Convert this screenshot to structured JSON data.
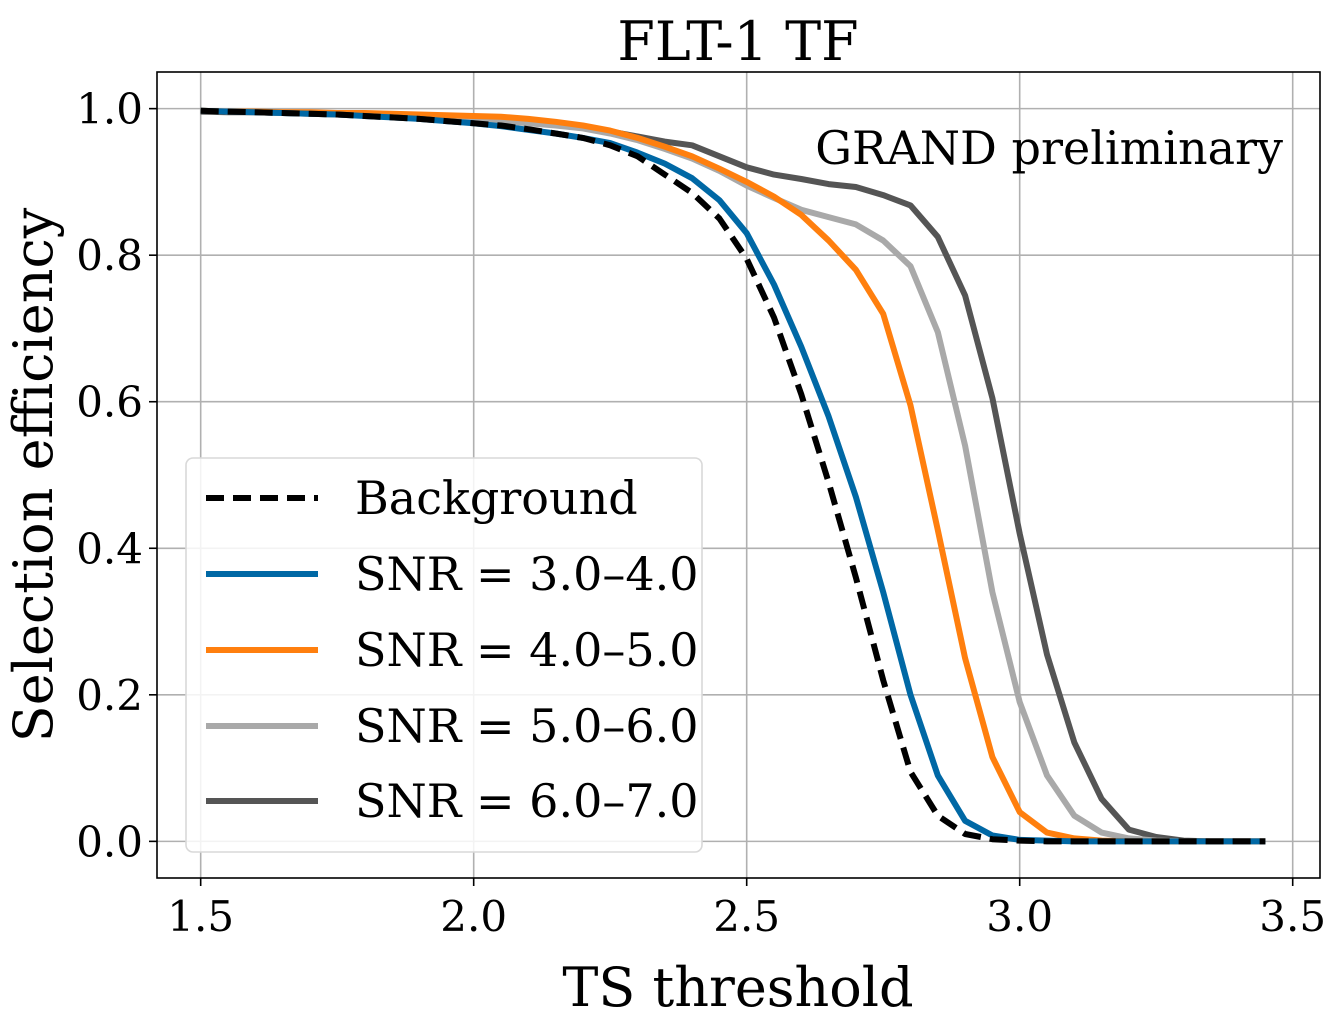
{
  "chart_data": {
    "type": "line",
    "title": "FLT-1 TF",
    "xlabel": "TS threshold",
    "ylabel": "Selection efficiency",
    "xlim": [
      1.42,
      3.55
    ],
    "ylim": [
      -0.05,
      1.05
    ],
    "xticks": [
      1.5,
      2.0,
      2.5,
      3.0,
      3.5
    ],
    "xtick_labels": [
      "1.5",
      "2.0",
      "2.5",
      "3.0",
      "3.5"
    ],
    "yticks": [
      0.0,
      0.2,
      0.4,
      0.6,
      0.8,
      1.0
    ],
    "ytick_labels": [
      "0.0",
      "0.2",
      "0.4",
      "0.6",
      "0.8",
      "1.0"
    ],
    "grid": true,
    "legend_position": "lower-left",
    "annotation": {
      "text": "GRAND preliminary",
      "color": "#d6174a",
      "position": "top-right"
    },
    "x": [
      1.5,
      1.55,
      1.6,
      1.65,
      1.7,
      1.75,
      1.8,
      1.85,
      1.9,
      1.95,
      2.0,
      2.05,
      2.1,
      2.15,
      2.2,
      2.25,
      2.3,
      2.35,
      2.4,
      2.45,
      2.5,
      2.55,
      2.6,
      2.65,
      2.7,
      2.75,
      2.8,
      2.85,
      2.9,
      2.95,
      3.0,
      3.05,
      3.1,
      3.15,
      3.2,
      3.25,
      3.3,
      3.35,
      3.4,
      3.45
    ],
    "series": [
      {
        "name": "Background",
        "color": "#000000",
        "dash": true,
        "values": [
          0.997,
          0.996,
          0.995,
          0.994,
          0.993,
          0.992,
          0.99,
          0.988,
          0.986,
          0.983,
          0.98,
          0.977,
          0.972,
          0.966,
          0.96,
          0.95,
          0.935,
          0.91,
          0.885,
          0.85,
          0.795,
          0.715,
          0.61,
          0.49,
          0.36,
          0.22,
          0.095,
          0.035,
          0.01,
          0.003,
          0.001,
          0.0,
          0.0,
          0.0,
          0.0,
          0.0,
          0.0,
          0.0,
          0.0,
          0.0
        ]
      },
      {
        "name": "SNR = 3.0–4.0",
        "color": "#0068a5",
        "dash": false,
        "values": [
          0.997,
          0.996,
          0.995,
          0.994,
          0.993,
          0.992,
          0.99,
          0.988,
          0.986,
          0.983,
          0.98,
          0.976,
          0.971,
          0.966,
          0.96,
          0.953,
          0.94,
          0.925,
          0.905,
          0.875,
          0.83,
          0.76,
          0.675,
          0.58,
          0.47,
          0.34,
          0.2,
          0.09,
          0.028,
          0.008,
          0.002,
          0.001,
          0.0,
          0.0,
          0.0,
          0.0,
          0.0,
          0.0,
          0.0,
          0.0
        ]
      },
      {
        "name": "SNR = 4.0–5.0",
        "color": "#ff7f0e",
        "dash": false,
        "values": [
          0.997,
          0.996,
          0.996,
          0.995,
          0.995,
          0.994,
          0.994,
          0.993,
          0.992,
          0.991,
          0.99,
          0.989,
          0.986,
          0.982,
          0.977,
          0.97,
          0.96,
          0.948,
          0.935,
          0.918,
          0.9,
          0.88,
          0.855,
          0.82,
          0.78,
          0.72,
          0.595,
          0.425,
          0.25,
          0.115,
          0.04,
          0.012,
          0.004,
          0.001,
          0.0,
          0.0,
          0.0,
          0.0,
          0.0,
          0.0
        ]
      },
      {
        "name": "SNR = 5.0–6.0",
        "color": "#a9a9a9",
        "dash": false,
        "values": [
          0.997,
          0.996,
          0.995,
          0.994,
          0.993,
          0.992,
          0.991,
          0.99,
          0.989,
          0.987,
          0.985,
          0.983,
          0.98,
          0.977,
          0.973,
          0.966,
          0.957,
          0.945,
          0.932,
          0.915,
          0.895,
          0.878,
          0.862,
          0.852,
          0.842,
          0.82,
          0.785,
          0.695,
          0.54,
          0.34,
          0.19,
          0.09,
          0.035,
          0.012,
          0.004,
          0.001,
          0.0,
          0.0,
          0.0,
          0.0
        ]
      },
      {
        "name": "SNR = 6.0–7.0",
        "color": "#555555",
        "dash": false,
        "values": [
          0.996,
          0.995,
          0.995,
          0.994,
          0.993,
          0.992,
          0.991,
          0.99,
          0.989,
          0.988,
          0.987,
          0.986,
          0.984,
          0.981,
          0.976,
          0.969,
          0.962,
          0.955,
          0.95,
          0.935,
          0.92,
          0.91,
          0.904,
          0.897,
          0.893,
          0.882,
          0.868,
          0.825,
          0.745,
          0.605,
          0.42,
          0.255,
          0.135,
          0.058,
          0.016,
          0.006,
          0.001,
          0.0,
          0.0,
          0.0
        ]
      }
    ]
  }
}
